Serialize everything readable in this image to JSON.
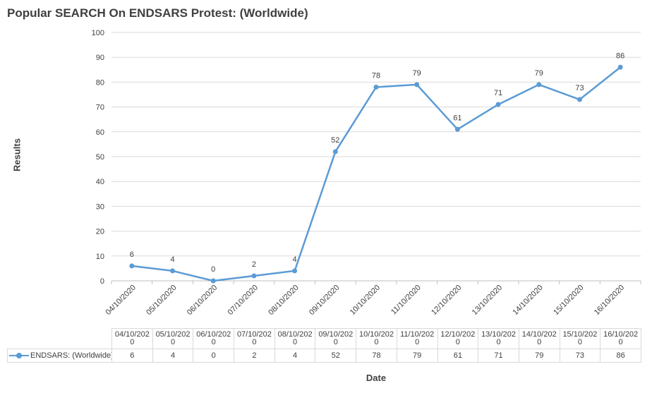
{
  "chart_data": {
    "type": "line",
    "title": "Popular SEARCH On ENDSARS Protest: (Worldwide)",
    "xlabel": "Date",
    "ylabel": "Results",
    "categories": [
      "04/10/2020",
      "05/10/2020",
      "06/10/2020",
      "07/10/2020",
      "08/10/2020",
      "09/10/2020",
      "10/10/2020",
      "11/10/2020",
      "12/10/2020",
      "13/10/2020",
      "14/10/2020",
      "15/10/2020",
      "16/10/2020"
    ],
    "table_headers": [
      "04/10/202\n0",
      "05/10/202\n0",
      "06/10/202\n0",
      "07/10/202\n0",
      "08/10/202\n0",
      "09/10/202\n0",
      "10/10/202\n0",
      "11/10/202\n0",
      "12/10/202\n0",
      "13/10/202\n0",
      "14/10/202\n0",
      "15/10/202\n0",
      "16/10/202\n0"
    ],
    "series": [
      {
        "name": "ENDSARS: (Worldwide)",
        "values": [
          6,
          4,
          0,
          2,
          4,
          52,
          78,
          79,
          61,
          71,
          79,
          73,
          86
        ],
        "color": "#5b9bd5"
      }
    ],
    "ylim": [
      0,
      100
    ],
    "yticks": [
      0,
      10,
      20,
      30,
      40,
      50,
      60,
      70,
      80,
      90,
      100
    ],
    "grid": true,
    "data_labels": true,
    "legend": "data-table"
  }
}
